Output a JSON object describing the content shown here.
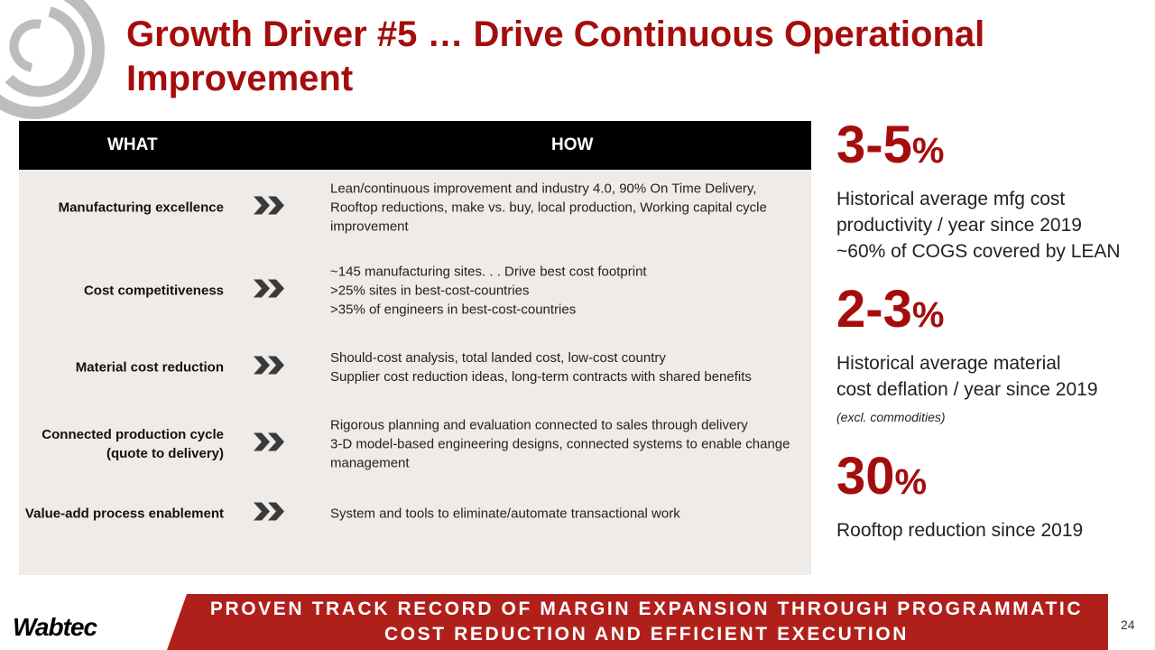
{
  "title": "Growth Driver #5 … Drive Continuous Operational Improvement",
  "table": {
    "headers": {
      "what": "WHAT",
      "how": "HOW"
    },
    "rows": [
      {
        "what": "Manufacturing excellence",
        "how": "Lean/continuous improvement and industry 4.0, 90% On Time Delivery, Rooftop reductions, make vs. buy, local production, Working capital cycle improvement"
      },
      {
        "what": "Cost competitiveness",
        "how": [
          "~145 manufacturing sites. . . Drive best cost footprint",
          ">25% sites in best-cost-countries",
          ">35% of engineers in best-cost-countries"
        ]
      },
      {
        "what": "Material cost reduction",
        "how": [
          "Should-cost analysis, total landed cost, low-cost country",
          "Supplier cost reduction ideas, long-term contracts with shared benefits"
        ]
      },
      {
        "what": "Connected production cycle (quote to delivery)",
        "how": [
          "Rigorous planning and evaluation connected to sales through delivery",
          "3-D model-based engineering designs, connected systems to enable change management"
        ]
      },
      {
        "what": "Value-add process enablement",
        "how": "System and tools to eliminate/automate transactional work"
      }
    ]
  },
  "stats": [
    {
      "value": "3-5",
      "unit": "%",
      "lines": [
        "Historical average mfg cost productivity / year since 2019",
        "~60% of COGS covered by LEAN"
      ]
    },
    {
      "value": "2-3",
      "unit": "%",
      "lines": [
        "Historical average material cost deflation / year since 2019"
      ],
      "note": "(excl. commodities)"
    },
    {
      "value": "30",
      "unit": "%",
      "lines": [
        "Rooftop reduction since 2019"
      ]
    }
  ],
  "banner": "PROVEN TRACK RECORD OF MARGIN EXPANSION THROUGH PROGRAMMATIC COST REDUCTION AND EFFICIENT EXECUTION",
  "brand": "Wabtec",
  "page_number": "24",
  "colors": {
    "accent": "#a50d0d",
    "banner": "#b0201b",
    "table_bg": "#eeebe9"
  }
}
